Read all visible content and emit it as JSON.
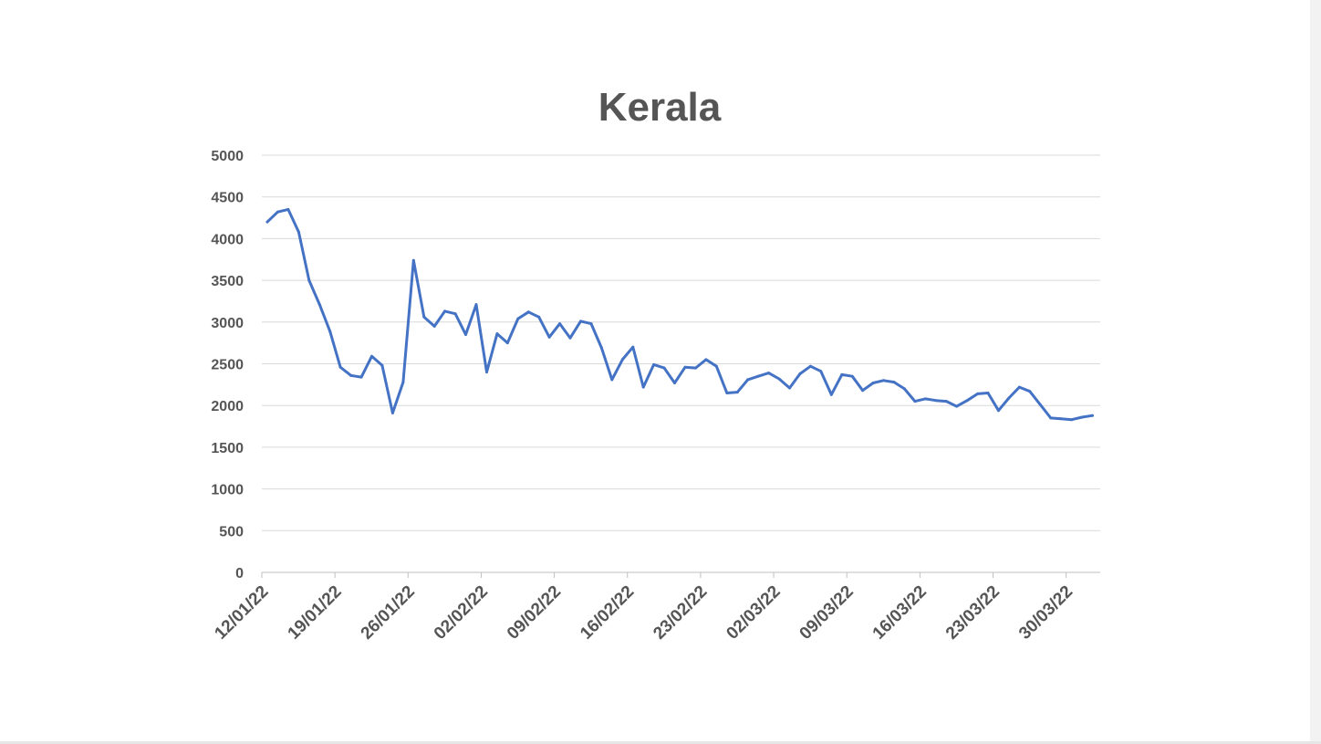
{
  "chart_data": {
    "type": "line",
    "title": "Kerala",
    "xlabel": "",
    "ylabel": "",
    "ylim": [
      0,
      5000
    ],
    "y_ticks": [
      "0",
      "500",
      "1000",
      "1500",
      "2000",
      "2500",
      "3000",
      "3500",
      "4000",
      "4500",
      "5000"
    ],
    "x_tick_labels": [
      "12/01/22",
      "19/01/22",
      "26/01/22",
      "02/02/22",
      "09/02/22",
      "16/02/22",
      "23/02/22",
      "02/03/22",
      "09/03/22",
      "16/03/22",
      "23/03/22",
      "30/03/22"
    ],
    "x_start": "12/01/22",
    "x_end": "01/04/22",
    "grid": true,
    "legend": "none",
    "line_color": "#4472c4",
    "series": [
      {
        "values": [
          4200,
          4320,
          4350,
          4080,
          3500,
          3210,
          2890,
          2460,
          2360,
          2340,
          2590,
          2480,
          1910,
          2280,
          3740,
          3060,
          2950,
          3130,
          3100,
          2850,
          3210,
          2400,
          2860,
          2750,
          3040,
          3120,
          3060,
          2820,
          2980,
          2810,
          3010,
          2980,
          2690,
          2310,
          2550,
          2700,
          2220,
          2490,
          2450,
          2270,
          2460,
          2450,
          2550,
          2470,
          2150,
          2160,
          2310,
          2350,
          2390,
          2320,
          2210,
          2380,
          2470,
          2410,
          2130,
          2370,
          2350,
          2180,
          2270,
          2300,
          2280,
          2200,
          2050,
          2080,
          2060,
          2050,
          1990,
          2060,
          2140,
          2150,
          1940,
          2090,
          2220,
          2170,
          2010,
          1850,
          1840,
          1830,
          1860,
          1880
        ]
      }
    ]
  }
}
